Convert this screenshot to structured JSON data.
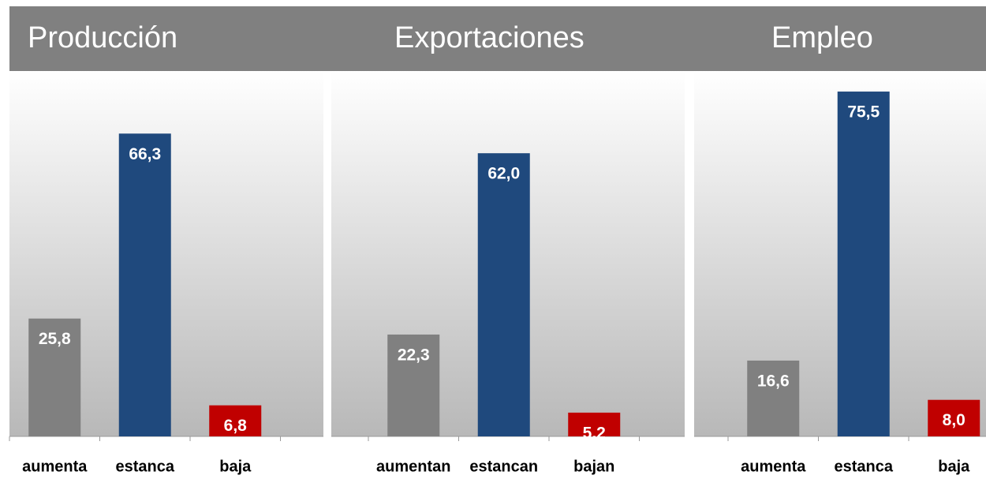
{
  "chart_data": [
    {
      "type": "bar",
      "title": "Producción",
      "categories": [
        "aumenta",
        "estanca",
        "baja"
      ],
      "values": [
        25.8,
        66.3,
        6.8
      ],
      "value_labels": [
        "25,8",
        "66,3",
        "6,8"
      ],
      "colors": [
        "#808080",
        "#1f497d",
        "#c00000"
      ],
      "ylim": [
        0,
        80
      ]
    },
    {
      "type": "bar",
      "title": "Exportaciones",
      "categories": [
        "aumentan",
        "estancan",
        "bajan"
      ],
      "values": [
        22.3,
        62.0,
        5.2
      ],
      "value_labels": [
        "22,3",
        "62,0",
        "5,2"
      ],
      "colors": [
        "#808080",
        "#1f497d",
        "#c00000"
      ],
      "ylim": [
        0,
        80
      ]
    },
    {
      "type": "bar",
      "title": "Empleo",
      "categories": [
        "aumenta",
        "estanca",
        "baja"
      ],
      "values": [
        16.6,
        75.5,
        8.0
      ],
      "value_labels": [
        "16,6",
        "75,5",
        "8,0"
      ],
      "colors": [
        "#808080",
        "#1f497d",
        "#c00000"
      ],
      "ylim": [
        0,
        80
      ]
    }
  ]
}
